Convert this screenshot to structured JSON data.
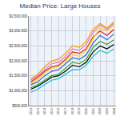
{
  "chart_data": {
    "type": "line",
    "title": "Median Price: Large Houses",
    "categories": [
      "2012",
      "2013",
      "2014",
      "2015",
      "2016",
      "2017",
      "2018",
      "2019",
      "2020",
      "2021",
      "2022",
      "2023",
      "2024"
    ],
    "series": [
      {
        "color": "#000000",
        "values": [
          1050000,
          1150000,
          1300000,
          1450000,
          1500000,
          1650000,
          1850000,
          1800000,
          1950000,
          2300000,
          2500000,
          2400000,
          2550000
        ]
      },
      {
        "color": "#e41a1c",
        "values": [
          1300000,
          1450000,
          1650000,
          1800000,
          1850000,
          2050000,
          2300000,
          2250000,
          2400000,
          2800000,
          3000000,
          2850000,
          3050000
        ]
      },
      {
        "color": "#ff9900",
        "values": [
          1400000,
          1550000,
          1800000,
          2000000,
          2050000,
          2250000,
          2500000,
          2450000,
          2650000,
          3050000,
          3250000,
          3100000,
          3300000
        ]
      },
      {
        "color": "#ffcc00",
        "values": [
          1250000,
          1400000,
          1600000,
          1750000,
          1800000,
          2000000,
          2200000,
          2150000,
          2350000,
          2750000,
          3100000,
          3000000,
          3200000
        ]
      },
      {
        "color": "#3366cc",
        "values": [
          1200000,
          1300000,
          1500000,
          1650000,
          1700000,
          1900000,
          2100000,
          2050000,
          2200000,
          2600000,
          2850000,
          2700000,
          2900000
        ]
      },
      {
        "color": "#33a02c",
        "values": [
          1100000,
          1200000,
          1350000,
          1500000,
          1550000,
          1750000,
          1950000,
          1900000,
          2050000,
          2450000,
          2650000,
          2550000,
          2700000
        ]
      },
      {
        "color": "#17becf",
        "values": [
          950000,
          1050000,
          1200000,
          1350000,
          1400000,
          1550000,
          1700000,
          1700000,
          1850000,
          2150000,
          2350000,
          2250000,
          2400000
        ]
      },
      {
        "color": "#e377c2",
        "values": [
          1350000,
          1500000,
          1700000,
          1900000,
          1950000,
          2150000,
          2400000,
          2350000,
          2550000,
          2950000,
          3200000,
          3050000,
          3250000
        ]
      }
    ],
    "ylim": [
      500000,
      3500000
    ],
    "yticks": [
      {
        "value": 500000,
        "label": "$500,000"
      },
      {
        "value": 1000000,
        "label": "$1,000,000"
      },
      {
        "value": 1500000,
        "label": "$1,500,000"
      },
      {
        "value": 2000000,
        "label": "$2,000,000"
      },
      {
        "value": 2500000,
        "label": "$2,500,000"
      },
      {
        "value": 3000000,
        "label": "$3,000,000"
      },
      {
        "value": 3500000,
        "label": "$3,500,000"
      }
    ],
    "grid": true
  }
}
